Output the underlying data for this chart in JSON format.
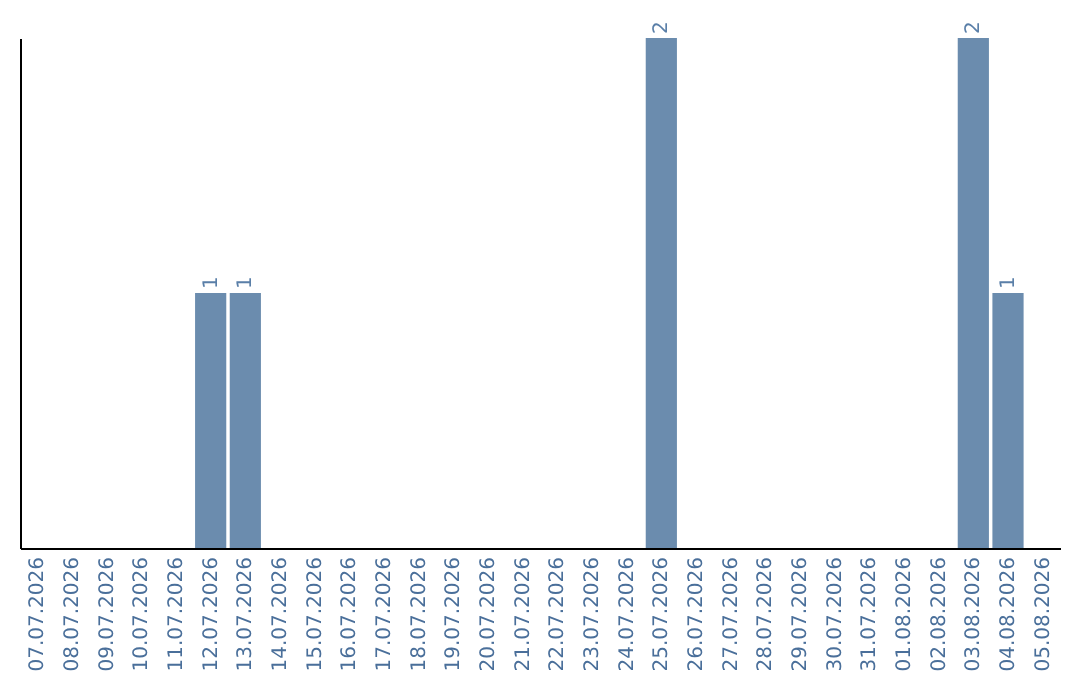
{
  "chart_data": {
    "type": "bar",
    "categories": [
      "07.07.2026",
      "08.07.2026",
      "09.07.2026",
      "10.07.2026",
      "11.07.2026",
      "12.07.2026",
      "13.07.2026",
      "14.07.2026",
      "15.07.2026",
      "16.07.2026",
      "17.07.2026",
      "18.07.2026",
      "19.07.2026",
      "20.07.2026",
      "21.07.2026",
      "22.07.2026",
      "23.07.2026",
      "24.07.2026",
      "25.07.2026",
      "26.07.2026",
      "27.07.2026",
      "28.07.2026",
      "29.07.2026",
      "30.07.2026",
      "31.07.2026",
      "01.08.2026",
      "02.08.2026",
      "03.08.2026",
      "04.08.2026",
      "05.08.2026"
    ],
    "values": [
      0,
      0,
      0,
      0,
      0,
      1,
      1,
      0,
      0,
      0,
      0,
      0,
      0,
      0,
      0,
      0,
      0,
      0,
      2,
      0,
      0,
      0,
      0,
      0,
      0,
      0,
      0,
      2,
      1,
      0
    ],
    "value_labels": [
      null,
      null,
      null,
      null,
      null,
      "1",
      "1",
      null,
      null,
      null,
      null,
      null,
      null,
      null,
      null,
      null,
      null,
      null,
      "2",
      null,
      null,
      null,
      null,
      null,
      null,
      null,
      null,
      "2",
      "1",
      null
    ],
    "color": "#6b8cae",
    "tick_labels": "x"
  }
}
